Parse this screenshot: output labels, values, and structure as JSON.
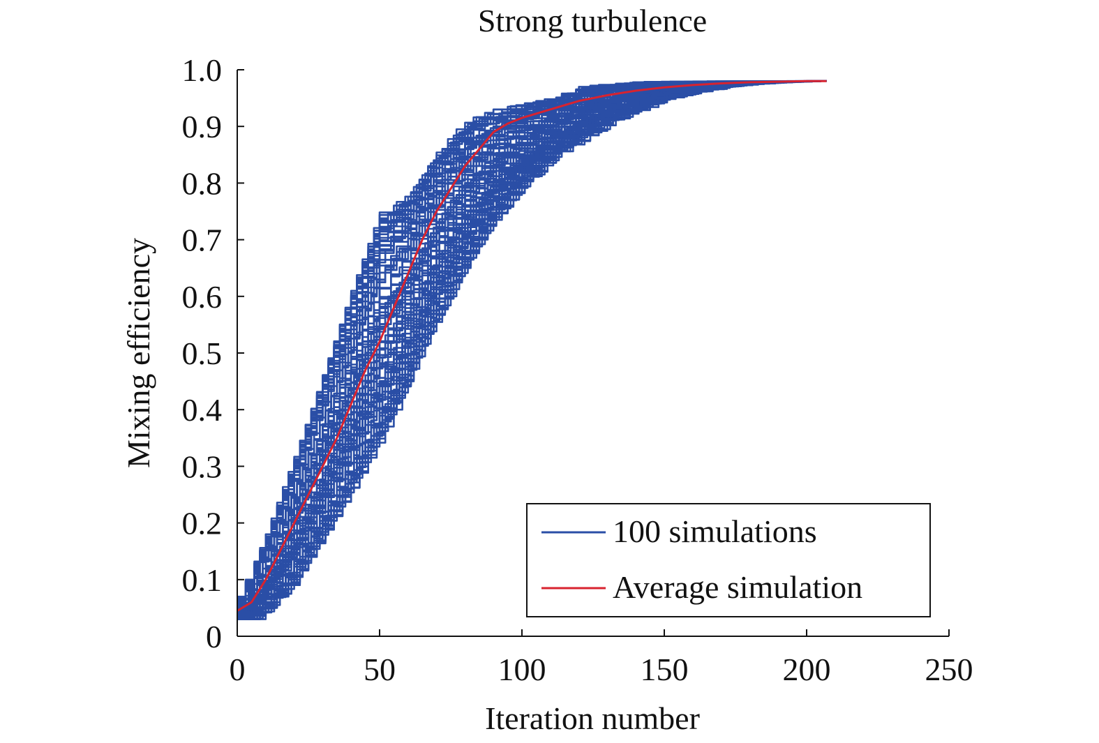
{
  "chart_data": {
    "type": "line",
    "title": "Strong turbulence",
    "xlabel": "Iteration number",
    "ylabel": "Mixing efficiency",
    "xlim": [
      0,
      250
    ],
    "ylim": [
      0,
      1.0
    ],
    "xticks": [
      0,
      50,
      100,
      150,
      200,
      250
    ],
    "xtick_labels": [
      "0",
      "50",
      "100",
      "150",
      "200",
      "250"
    ],
    "yticks": [
      0,
      0.1,
      0.2,
      0.3,
      0.4,
      0.5,
      0.6,
      0.7,
      0.8,
      0.9,
      1.0
    ],
    "ytick_labels": [
      "0",
      "0.1",
      "0.2",
      "0.3",
      "0.4",
      "0.5",
      "0.6",
      "0.7",
      "0.8",
      "0.9",
      "1.0"
    ],
    "grid": false,
    "legend_position": "bottom-right",
    "series": [
      {
        "name": "100 simulations",
        "color": "#2a4ea6",
        "count": 100,
        "note": "ensemble of individual runs; envelope shown",
        "x": [
          0,
          5,
          10,
          20,
          30,
          40,
          50,
          60,
          70,
          80,
          90,
          100,
          110,
          120,
          130,
          140,
          150,
          160,
          170,
          180,
          190,
          200,
          207
        ],
        "lower": [
          0.03,
          0.03,
          0.05,
          0.1,
          0.18,
          0.26,
          0.35,
          0.45,
          0.56,
          0.66,
          0.74,
          0.8,
          0.85,
          0.88,
          0.91,
          0.93,
          0.95,
          0.96,
          0.97,
          0.975,
          0.978,
          0.98,
          0.98
        ],
        "upper": [
          0.07,
          0.12,
          0.18,
          0.32,
          0.47,
          0.62,
          0.76,
          0.79,
          0.86,
          0.91,
          0.93,
          0.94,
          0.95,
          0.97,
          0.975,
          0.98,
          0.98,
          0.98,
          0.98,
          0.98,
          0.98,
          0.98,
          0.98
        ]
      },
      {
        "name": "Average simulation",
        "color": "#d8232f",
        "x": [
          0,
          5,
          10,
          15,
          20,
          25,
          30,
          35,
          40,
          45,
          50,
          55,
          60,
          65,
          70,
          75,
          80,
          85,
          90,
          95,
          100,
          110,
          120,
          130,
          140,
          150,
          160,
          170,
          180,
          190,
          200,
          207
        ],
        "values": [
          0.045,
          0.06,
          0.1,
          0.15,
          0.2,
          0.25,
          0.3,
          0.35,
          0.41,
          0.47,
          0.52,
          0.58,
          0.64,
          0.7,
          0.75,
          0.79,
          0.83,
          0.86,
          0.89,
          0.905,
          0.915,
          0.93,
          0.945,
          0.955,
          0.963,
          0.969,
          0.973,
          0.976,
          0.978,
          0.979,
          0.98,
          0.98
        ]
      }
    ]
  }
}
